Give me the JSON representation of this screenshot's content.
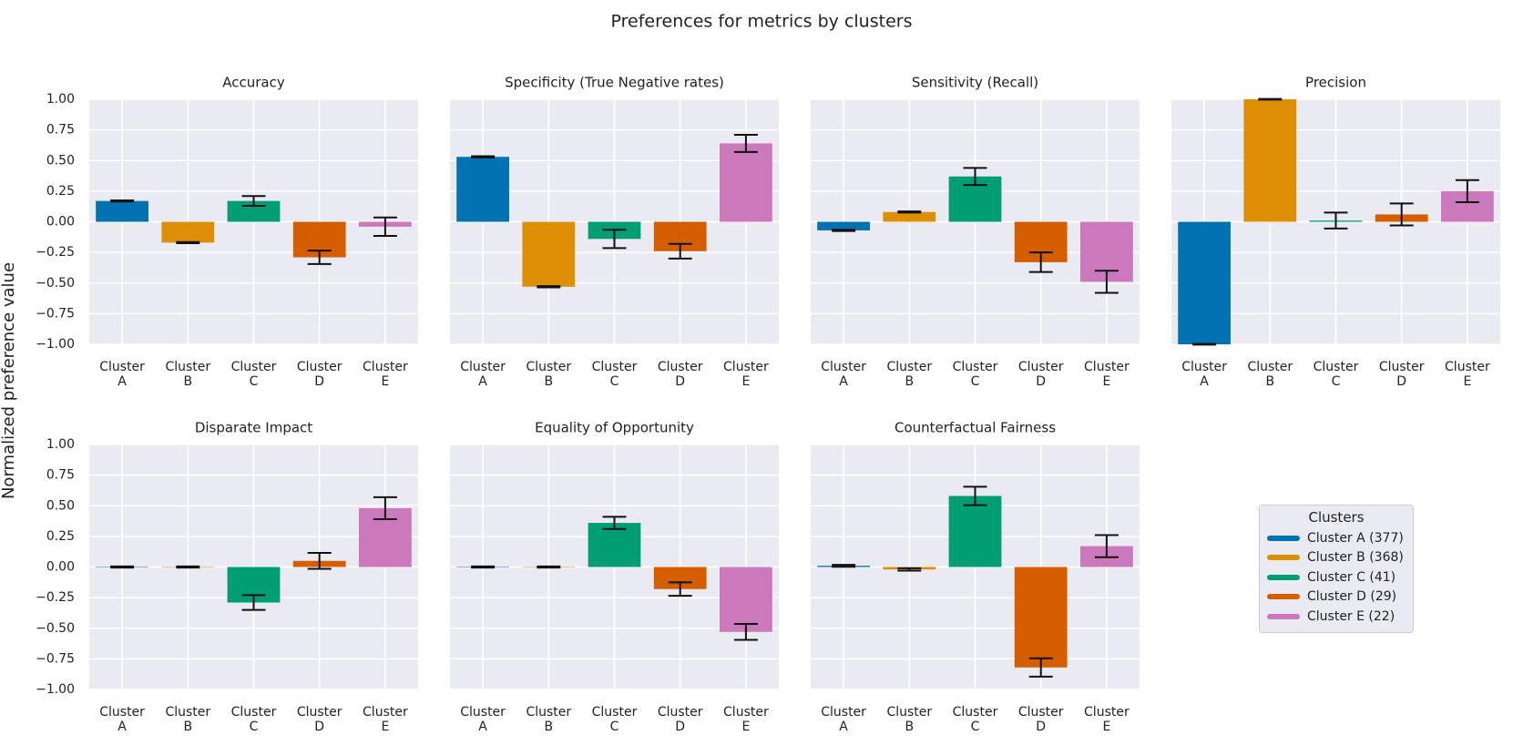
{
  "title": "Preferences for metrics by clusters",
  "ylabel": "Normalized preference value",
  "legend": {
    "title": "Clusters",
    "items": [
      {
        "name": "Cluster A (377)",
        "color": "#0173b2"
      },
      {
        "name": "Cluster B (368)",
        "color": "#de8f05"
      },
      {
        "name": "Cluster C (41)",
        "color": "#029e73"
      },
      {
        "name": "Cluster D (29)",
        "color": "#d55e00"
      },
      {
        "name": "Cluster E (22)",
        "color": "#cc78bc"
      }
    ]
  },
  "chart_data": [
    {
      "type": "bar",
      "title": "Accuracy",
      "categories": [
        "Cluster A",
        "Cluster B",
        "Cluster C",
        "Cluster D",
        "Cluster E"
      ],
      "values": [
        0.17,
        -0.17,
        0.17,
        -0.29,
        -0.04
      ],
      "errors": [
        0.005,
        0.005,
        0.04,
        0.055,
        0.075
      ],
      "colors": [
        "#0173b2",
        "#de8f05",
        "#029e73",
        "#d55e00",
        "#cc78bc"
      ],
      "ylim": [
        -1,
        1
      ],
      "yticks": [
        {
          "value": -1,
          "label": "−1.00"
        },
        {
          "value": -0.75,
          "label": "−0.75"
        },
        {
          "value": -0.5,
          "label": "−0.50"
        },
        {
          "value": -0.25,
          "label": "−0.25"
        },
        {
          "value": 0,
          "label": "0.00"
        },
        {
          "value": 0.25,
          "label": "0.25"
        },
        {
          "value": 0.5,
          "label": "0.50"
        },
        {
          "value": 0.75,
          "label": "0.75"
        },
        {
          "value": 1,
          "label": "1.00"
        }
      ],
      "grid": true
    },
    {
      "type": "bar",
      "title": "Specificity (True Negative rates)",
      "categories": [
        "Cluster A",
        "Cluster B",
        "Cluster C",
        "Cluster D",
        "Cluster E"
      ],
      "values": [
        0.53,
        -0.53,
        -0.14,
        -0.24,
        0.64
      ],
      "errors": [
        0.005,
        0.005,
        0.075,
        0.06,
        0.07
      ],
      "colors": [
        "#0173b2",
        "#de8f05",
        "#029e73",
        "#d55e00",
        "#cc78bc"
      ],
      "ylim": [
        -1,
        1
      ],
      "yticks": [
        -1,
        -0.75,
        -0.5,
        -0.25,
        0,
        0.25,
        0.5,
        0.75,
        1
      ],
      "grid": true
    },
    {
      "type": "bar",
      "title": "Sensitivity (Recall)",
      "categories": [
        "Cluster A",
        "Cluster B",
        "Cluster C",
        "Cluster D",
        "Cluster E"
      ],
      "values": [
        -0.07,
        0.08,
        0.37,
        -0.33,
        -0.49
      ],
      "errors": [
        0.005,
        0.005,
        0.07,
        0.08,
        0.09
      ],
      "colors": [
        "#0173b2",
        "#de8f05",
        "#029e73",
        "#d55e00",
        "#cc78bc"
      ],
      "ylim": [
        -1,
        1
      ],
      "yticks": [
        -1,
        -0.75,
        -0.5,
        -0.25,
        0,
        0.25,
        0.5,
        0.75,
        1
      ],
      "grid": true
    },
    {
      "type": "bar",
      "title": "Precision",
      "categories": [
        "Cluster A",
        "Cluster B",
        "Cluster C",
        "Cluster D",
        "Cluster E"
      ],
      "values": [
        -1,
        1,
        0.01,
        0.06,
        0.25
      ],
      "errors": [
        0.003,
        0.003,
        0.065,
        0.09,
        0.09
      ],
      "colors": [
        "#0173b2",
        "#de8f05",
        "#029e73",
        "#d55e00",
        "#cc78bc"
      ],
      "ylim": [
        -1,
        1
      ],
      "yticks": [
        -1,
        -0.75,
        -0.5,
        -0.25,
        0,
        0.25,
        0.5,
        0.75,
        1
      ],
      "grid": true
    },
    {
      "type": "bar",
      "title": "Disparate Impact",
      "categories": [
        "Cluster A",
        "Cluster B",
        "Cluster C",
        "Cluster D",
        "Cluster E"
      ],
      "values": [
        0,
        0,
        -0.29,
        0.05,
        0.48
      ],
      "errors": [
        0.005,
        0.005,
        0.06,
        0.065,
        0.09
      ],
      "colors": [
        "#0173b2",
        "#de8f05",
        "#029e73",
        "#d55e00",
        "#cc78bc"
      ],
      "ylim": [
        -1,
        1
      ],
      "yticks": [
        {
          "value": -1,
          "label": "−1.00"
        },
        {
          "value": -0.75,
          "label": "−0.75"
        },
        {
          "value": -0.5,
          "label": "−0.50"
        },
        {
          "value": -0.25,
          "label": "−0.25"
        },
        {
          "value": 0,
          "label": "0.00"
        },
        {
          "value": 0.25,
          "label": "0.25"
        },
        {
          "value": 0.5,
          "label": "0.50"
        },
        {
          "value": 0.75,
          "label": "0.75"
        },
        {
          "value": 1,
          "label": "1.00"
        }
      ],
      "grid": true
    },
    {
      "type": "bar",
      "title": "Equality of Opportunity",
      "categories": [
        "Cluster A",
        "Cluster B",
        "Cluster C",
        "Cluster D",
        "Cluster E"
      ],
      "values": [
        0,
        0,
        0.36,
        -0.18,
        -0.53
      ],
      "errors": [
        0.005,
        0.005,
        0.05,
        0.055,
        0.065
      ],
      "colors": [
        "#0173b2",
        "#de8f05",
        "#029e73",
        "#d55e00",
        "#cc78bc"
      ],
      "ylim": [
        -1,
        1
      ],
      "yticks": [
        -1,
        -0.75,
        -0.5,
        -0.25,
        0,
        0.25,
        0.5,
        0.75,
        1
      ],
      "grid": true
    },
    {
      "type": "bar",
      "title": "Counterfactual Fairness",
      "categories": [
        "Cluster A",
        "Cluster B",
        "Cluster C",
        "Cluster D",
        "Cluster E"
      ],
      "values": [
        0.01,
        -0.02,
        0.58,
        -0.82,
        0.17
      ],
      "errors": [
        0.008,
        0.01,
        0.075,
        0.075,
        0.09
      ],
      "colors": [
        "#0173b2",
        "#de8f05",
        "#029e73",
        "#d55e00",
        "#cc78bc"
      ],
      "ylim": [
        -1,
        1
      ],
      "yticks": [
        -1,
        -0.75,
        -0.5,
        -0.25,
        0,
        0.25,
        0.5,
        0.75,
        1
      ],
      "grid": true
    }
  ]
}
